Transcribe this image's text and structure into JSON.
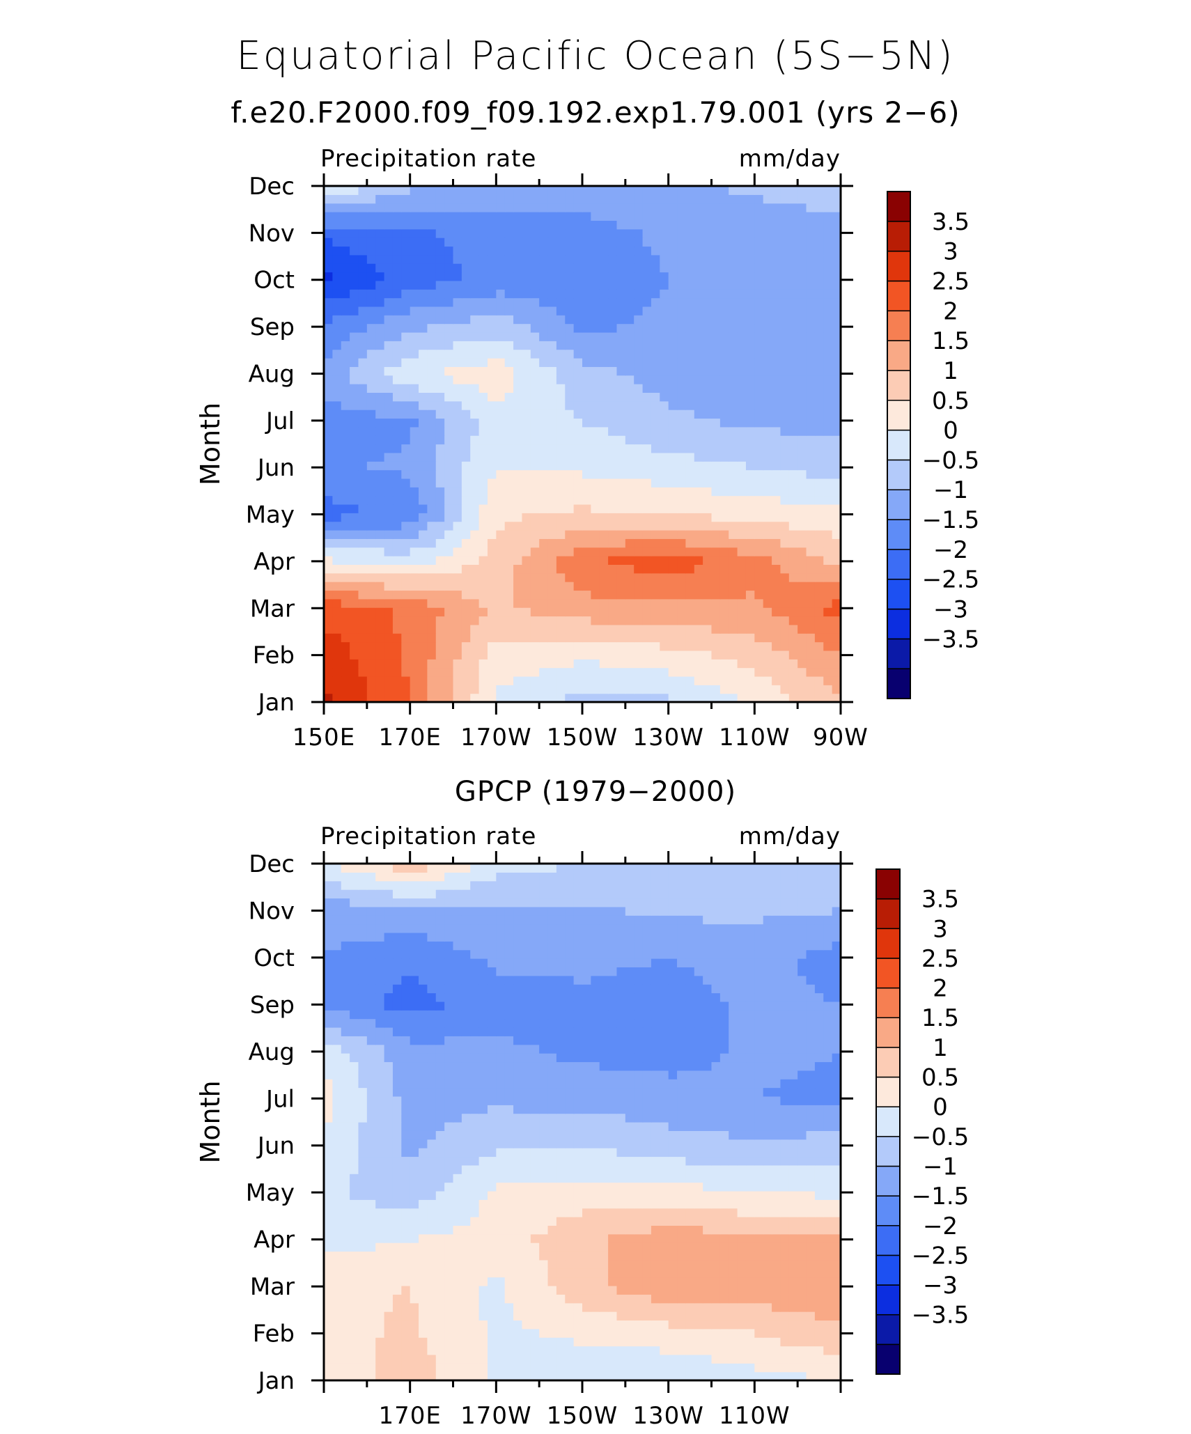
{
  "title": "Equatorial Pacific Ocean (5S−5N)",
  "subtitle": "f.e20.F2000.f09_f09.192.exp1.79.001 (yrs 2−6)",
  "colors": {
    "levels": [
      "#08006f",
      "#0b1aa8",
      "#0c2ee0",
      "#1d50f2",
      "#3c6df5",
      "#5e8cf7",
      "#85a8f8",
      "#b3cafa",
      "#d8e8fb",
      "#fde9dc",
      "#fcccb5",
      "#f9a986",
      "#f67f52",
      "#f25524",
      "#e0360c",
      "#b81d05",
      "#8a0202"
    ]
  },
  "chart_data": [
    {
      "type": "heatmap",
      "title": "f.e20.F2000.f09_f09.192.exp1.79.001 (yrs 2−6)",
      "left_label": "Precipitation rate",
      "right_label": "mm/day",
      "xlabel": "",
      "ylabel": "Month",
      "x_tick_labels": [
        "150E",
        "170E",
        "170W",
        "150W",
        "130W",
        "110W",
        "90W"
      ],
      "x": [
        150,
        170,
        190,
        210,
        230,
        250,
        270
      ],
      "y": [
        "Jan",
        "Feb",
        "Mar",
        "Apr",
        "May",
        "Jun",
        "Jul",
        "Aug",
        "Sep",
        "Oct",
        "Nov",
        "Dec"
      ],
      "values": [
        [
          3.6,
          2.5,
          0.4,
          -0.2,
          -0.1,
          0.6,
          1.4
        ],
        [
          3.3,
          2.4,
          0.8,
          0.6,
          0.8,
          1.2,
          2.0
        ],
        [
          2.8,
          2.4,
          1.4,
          1.8,
          1.9,
          1.9,
          2.7
        ],
        [
          0.6,
          0.3,
          1.2,
          2.4,
          2.8,
          2.2,
          1.4
        ],
        [
          -1.7,
          -1.4,
          0.9,
          1.1,
          1.0,
          0.8,
          0.6
        ],
        [
          -1.1,
          -0.9,
          0.5,
          0.4,
          0.2,
          0.0,
          -0.2
        ],
        [
          -1.2,
          -1.1,
          0.3,
          0.0,
          -0.4,
          -0.6,
          -0.7
        ],
        [
          -0.8,
          0.4,
          0.8,
          -0.3,
          -0.7,
          -0.8,
          -0.9
        ],
        [
          -1.4,
          -0.6,
          -0.2,
          -1.1,
          -0.9,
          -0.8,
          -0.8
        ],
        [
          -2.6,
          -1.8,
          -1.3,
          -1.3,
          -1.0,
          -0.8,
          -0.7
        ],
        [
          -1.9,
          -1.6,
          -1.3,
          -1.2,
          -0.9,
          -0.8,
          -0.6
        ],
        [
          0.5,
          -0.4,
          -0.6,
          -0.7,
          -0.6,
          -0.4,
          -0.3
        ]
      ],
      "colorbar_labels": [
        "3.5",
        "3",
        "2.5",
        "2",
        "1.5",
        "1",
        "0.5",
        "0",
        "−0.5",
        "−1",
        "−1.5",
        "−2",
        "−2.5",
        "−3",
        "−3.5"
      ],
      "levels": [
        -3.5,
        -3,
        -2.5,
        -2,
        -1.5,
        -1,
        -0.5,
        0,
        0.5,
        1,
        1.5,
        2,
        2.5,
        3,
        3.5
      ]
    },
    {
      "type": "heatmap",
      "title": "GPCP (1979−2000)",
      "left_label": "Precipitation rate",
      "right_label": "mm/day",
      "xlabel": "",
      "ylabel": "Month",
      "x_tick_labels": [
        "",
        "170E",
        "170W",
        "150W",
        "130W",
        "110W",
        ""
      ],
      "x": [
        150,
        170,
        190,
        210,
        230,
        250,
        270
      ],
      "y": [
        "Jan",
        "Feb",
        "Mar",
        "Apr",
        "May",
        "Jun",
        "Jul",
        "Aug",
        "Sep",
        "Oct",
        "Nov",
        "Dec"
      ],
      "values": [
        [
          0.6,
          1.3,
          0.4,
          0.1,
          0.0,
          0.3,
          0.5
        ],
        [
          0.8,
          1.1,
          0.4,
          0.6,
          0.8,
          1.0,
          1.4
        ],
        [
          0.9,
          1.0,
          0.4,
          1.3,
          1.9,
          1.8,
          1.9
        ],
        [
          0.3,
          0.5,
          0.7,
          1.4,
          1.8,
          1.6,
          1.6
        ],
        [
          0.1,
          -0.3,
          0.6,
          0.7,
          0.7,
          0.5,
          0.4
        ],
        [
          0.4,
          -0.6,
          -0.1,
          0.0,
          -0.3,
          -0.4,
          -0.3
        ],
        [
          0.7,
          -0.7,
          -0.6,
          -0.7,
          -0.8,
          -1.0,
          -1.1
        ],
        [
          0.3,
          -0.8,
          -0.9,
          -1.1,
          -1.2,
          -0.9,
          -1.0
        ],
        [
          -1.1,
          -1.7,
          -1.2,
          -1.1,
          -1.2,
          -0.9,
          -1.0
        ],
        [
          -1.0,
          -1.4,
          -0.9,
          -0.9,
          -1.0,
          -0.8,
          -1.2
        ],
        [
          -0.8,
          -0.6,
          -0.6,
          -0.6,
          -0.4,
          -0.4,
          -0.5
        ],
        [
          0.4,
          1.4,
          0.2,
          0.0,
          -0.3,
          -0.3,
          -0.3
        ]
      ],
      "colorbar_labels": [
        "3.5",
        "3",
        "2.5",
        "2",
        "1.5",
        "1",
        "0.5",
        "0",
        "−0.5",
        "−1",
        "−1.5",
        "−2",
        "−2.5",
        "−3",
        "−3.5"
      ],
      "levels": [
        -3.5,
        -3,
        -2.5,
        -2,
        -1.5,
        -1,
        -0.5,
        0,
        0.5,
        1,
        1.5,
        2,
        2.5,
        3,
        3.5
      ]
    }
  ]
}
